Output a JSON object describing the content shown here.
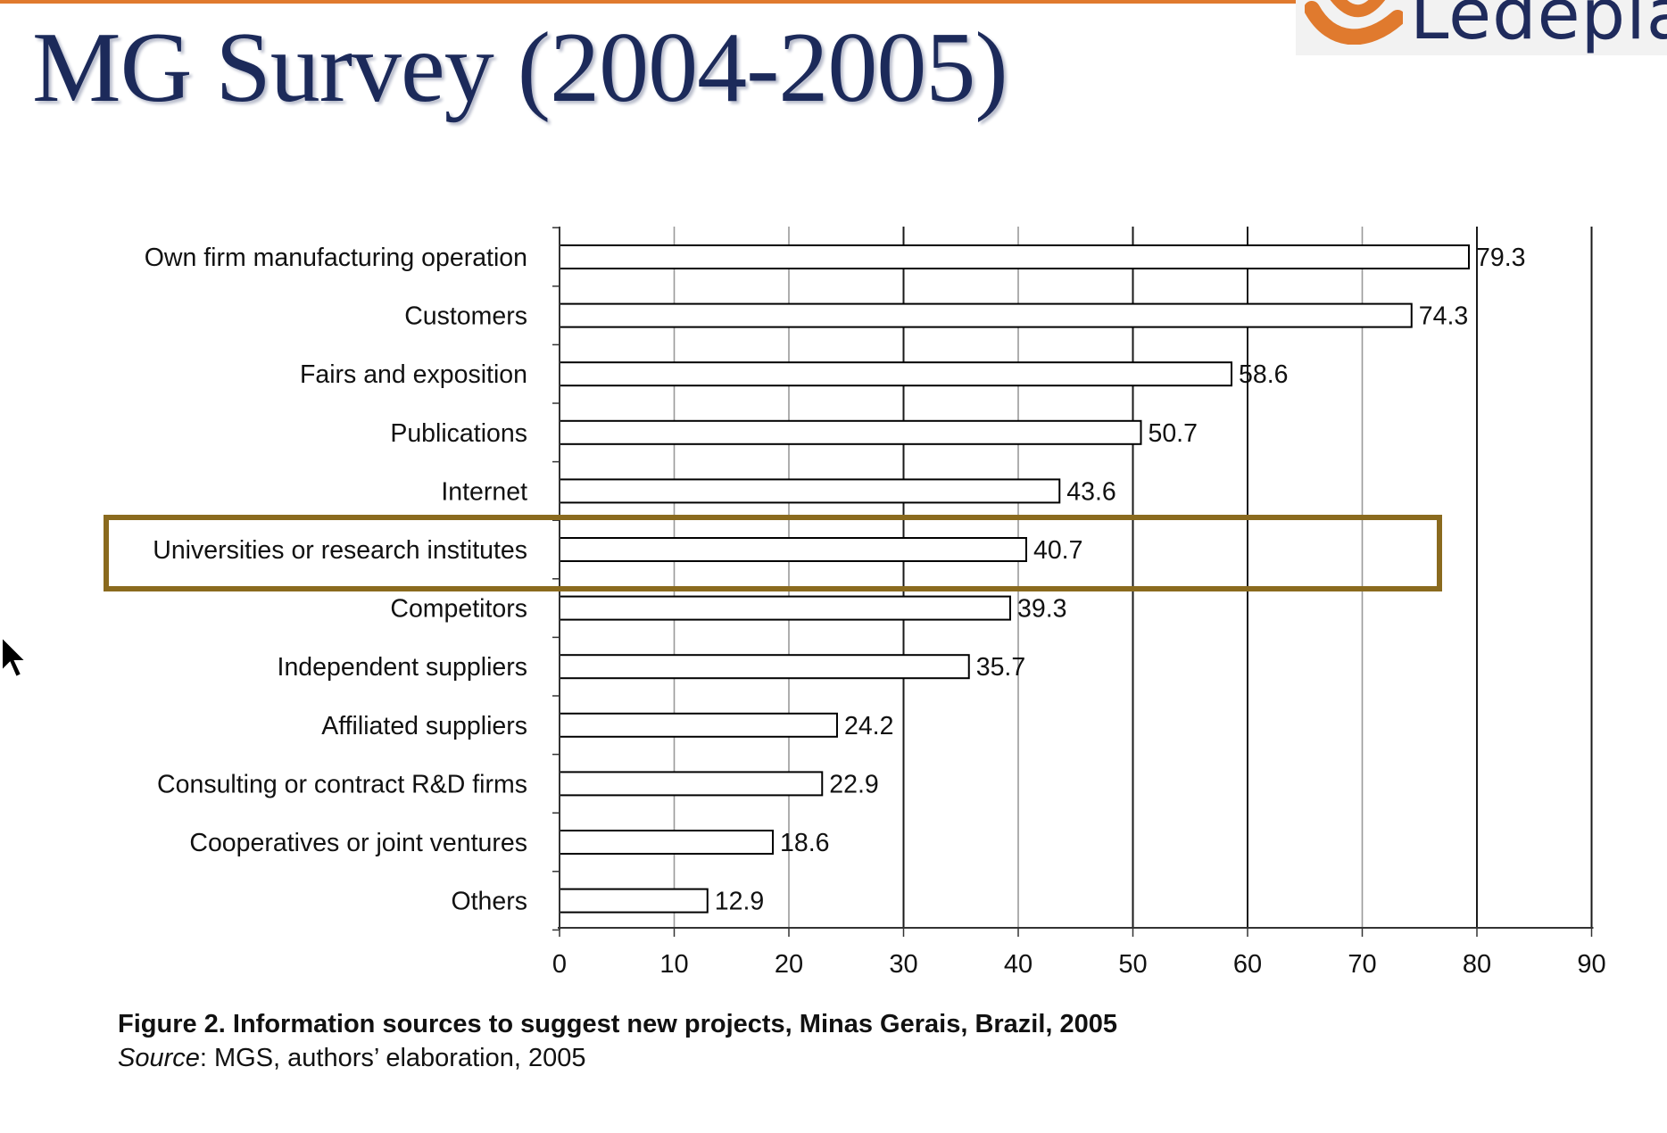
{
  "slide": {
    "title": "MG Survey (2004-2005)",
    "logo_text": "Ledeplai",
    "accent_color": "#e07a2e",
    "title_color": "#1c2a5a"
  },
  "chart_data": {
    "type": "bar",
    "orientation": "horizontal",
    "categories": [
      "Own firm manufacturing operation",
      "Customers",
      "Fairs and exposition",
      "Publications",
      "Internet",
      "Universities or research institutes",
      "Competitors",
      "Independent suppliers",
      "Affiliated suppliers",
      "Consulting or contract R&D firms",
      "Cooperatives or joint ventures",
      "Others"
    ],
    "values": [
      79.3,
      74.3,
      58.6,
      50.7,
      43.6,
      40.7,
      39.3,
      35.7,
      24.2,
      22.9,
      18.6,
      12.9
    ],
    "value_labels": [
      "79.3",
      "74.3",
      "58.6",
      "50.7",
      "43.6",
      "40.7",
      "39.3",
      "35.7",
      "24.2",
      "22.9",
      "18.6",
      "12.9"
    ],
    "xlim": [
      0,
      90
    ],
    "xticks": [
      0,
      10,
      20,
      30,
      40,
      50,
      60,
      70,
      80,
      90
    ],
    "xtick_labels": [
      "0",
      "10",
      "20",
      "30",
      "40",
      "50",
      "60",
      "70",
      "80",
      "90"
    ],
    "grid": true,
    "highlighted_category": "Universities or research institutes",
    "highlight_color": "#8a6a1e",
    "bar_fill": "#ffffff",
    "bar_stroke": "#000000",
    "caption": "Figure 2. Information sources to suggest new projects, Minas Gerais, Brazil, 2005",
    "source_label": "Source",
    "source_text": ": MGS, authors’ elaboration, 2005"
  }
}
